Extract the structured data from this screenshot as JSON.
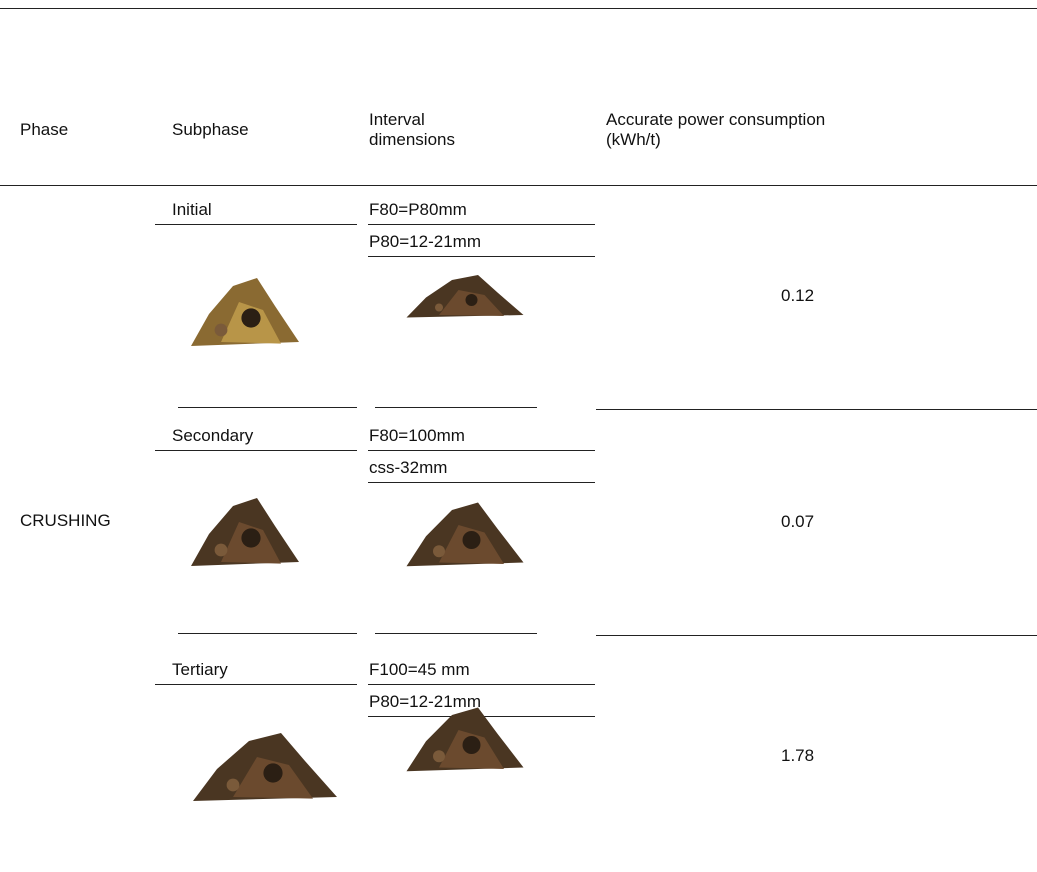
{
  "header": {
    "columns": [
      "Phase",
      "Subphase",
      "Interval dimensions",
      "Accurate power consumption (kWh/t)"
    ]
  },
  "table": {
    "phase": "CRUSHING",
    "rows": [
      {
        "subphase": "Initial",
        "dimensions": [
          "F80=P80mm",
          "P80=12-21mm"
        ],
        "power": "0.12"
      },
      {
        "subphase": "Secondary",
        "dimensions": [
          "F80=100mm",
          "css-32mm"
        ],
        "power": "0.07"
      },
      {
        "subphase": "Tertiary",
        "dimensions": [
          "F100=45 mm",
          "P80=12-21mm"
        ],
        "power": "1.78"
      }
    ]
  }
}
